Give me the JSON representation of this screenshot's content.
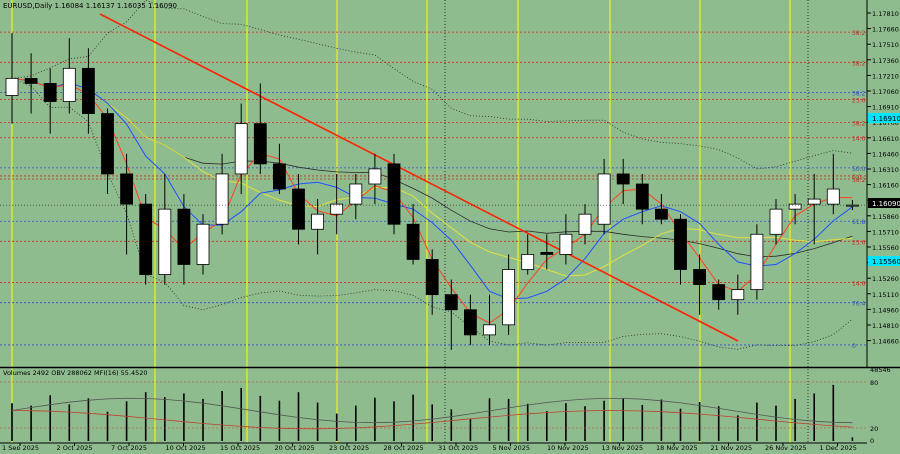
{
  "symbol_header": "EURUSD,Daily  1.16084  1.16137  1.16035  1.16090",
  "indicator_header": "Volumes 2492   OBV 288062   MFI(16) 55.4520",
  "colors": {
    "background": "#8fbc8f",
    "trendline": "#ff2200",
    "bollinger": "#2a2a2a",
    "ma_fast": "#ff4020",
    "ma_mid": "#2050ff",
    "ma_slow": "#e0e040",
    "candle_up": "#ffffff",
    "candle_down": "#000000",
    "marker_yellow": "#ffff00",
    "price_tag_black": "#000000",
    "price_tag_cyan": "#00e5ff"
  },
  "price_axis_labels": [
    "1.17810",
    "1.17660",
    "1.17510",
    "1.17360",
    "1.17210",
    "1.17060",
    "1.16910",
    "1.16760",
    "1.16610",
    "1.16460",
    "1.16310",
    "1.16160",
    "1.16010",
    "1.15860",
    "1.15710",
    "1.15560",
    "1.15410",
    "1.15260",
    "1.15110",
    "1.14960",
    "1.14810",
    "1.14660"
  ],
  "price_tags": {
    "current": "1.16090",
    "cyan_upper": "1.16910",
    "cyan_lower": "1.15560"
  },
  "fib_levels": [
    {
      "label": "38.2",
      "price": 1.1781,
      "color": "#c03020"
    },
    {
      "label": "38.2",
      "price": 1.1751,
      "color": "#c03020"
    },
    {
      "label": "38.2",
      "price": 1.1721,
      "color": "#3050c0"
    },
    {
      "label": "23.6",
      "price": 1.1714,
      "color": "#c03020"
    },
    {
      "label": "38.2",
      "price": 1.1691,
      "color": "#c03020"
    },
    {
      "label": "14.6",
      "price": 1.1676,
      "color": "#c03020"
    },
    {
      "label": "50.0",
      "price": 1.1646,
      "color": "#3050c0"
    },
    {
      "label": "0.0",
      "price": 1.1638,
      "color": "#c03020"
    },
    {
      "label": "38.2",
      "price": 1.1635,
      "color": "#c03020"
    },
    {
      "label": "61.8",
      "price": 1.1593,
      "color": "#3050c0"
    },
    {
      "label": "23.6",
      "price": 1.1573,
      "color": "#c03020"
    },
    {
      "label": "14.6",
      "price": 1.1532,
      "color": "#c03020"
    },
    {
      "label": "76.4",
      "price": 1.1512,
      "color": "#3050c0"
    },
    {
      "label": "0",
      "price": 1.147,
      "color": "#3050c0"
    }
  ],
  "date_labels": [
    "1 Sep 2025",
    "2 Oct 2025",
    "7 Oct 2025",
    "10 Oct 2025",
    "15 Oct 2025",
    "20 Oct 2025",
    "23 Oct 2025",
    "28 Oct 2025",
    "31 Oct 2025",
    "5 Nov 2025",
    "10 Nov 2025",
    "13 Nov 2025",
    "18 Nov 2025",
    "21 Nov 2025",
    "26 Nov 2025",
    "1 Dec 2025"
  ],
  "volume_axis_labels": [
    "48546",
    "80",
    "20",
    "0"
  ],
  "chart_data": {
    "type": "candlestick",
    "title": "EURUSD,Daily",
    "ylabel": "",
    "ylim": [
      1.146,
      1.18
    ],
    "ohlc": [
      [
        1.1718,
        1.178,
        1.169,
        1.1735
      ],
      [
        1.1735,
        1.176,
        1.17,
        1.173
      ],
      [
        1.173,
        1.1745,
        1.168,
        1.1712
      ],
      [
        1.1712,
        1.1775,
        1.17,
        1.1745
      ],
      [
        1.1745,
        1.1765,
        1.168,
        1.17
      ],
      [
        1.17,
        1.1705,
        1.162,
        1.164
      ],
      [
        1.164,
        1.166,
        1.156,
        1.161
      ],
      [
        1.161,
        1.162,
        1.153,
        1.154
      ],
      [
        1.154,
        1.164,
        1.153,
        1.1605
      ],
      [
        1.1605,
        1.162,
        1.153,
        1.155
      ],
      [
        1.155,
        1.16,
        1.154,
        1.159
      ],
      [
        1.159,
        1.166,
        1.158,
        1.164
      ],
      [
        1.164,
        1.171,
        1.162,
        1.169
      ],
      [
        1.169,
        1.173,
        1.164,
        1.165
      ],
      [
        1.165,
        1.167,
        1.162,
        1.1625
      ],
      [
        1.1625,
        1.164,
        1.157,
        1.1585
      ],
      [
        1.1585,
        1.1615,
        1.156,
        1.16
      ],
      [
        1.16,
        1.164,
        1.158,
        1.161
      ],
      [
        1.161,
        1.164,
        1.1595,
        1.163
      ],
      [
        1.163,
        1.166,
        1.161,
        1.1645
      ],
      [
        1.165,
        1.166,
        1.158,
        1.159
      ],
      [
        1.159,
        1.161,
        1.155,
        1.1555
      ],
      [
        1.1555,
        1.1565,
        1.15,
        1.152
      ],
      [
        1.152,
        1.1535,
        1.1465,
        1.1505
      ],
      [
        1.1505,
        1.152,
        1.147,
        1.148
      ],
      [
        1.148,
        1.152,
        1.147,
        1.149
      ],
      [
        1.149,
        1.156,
        1.148,
        1.1545
      ],
      [
        1.1545,
        1.158,
        1.154,
        1.156
      ],
      [
        1.1562,
        1.158,
        1.1545,
        1.156
      ],
      [
        1.156,
        1.16,
        1.155,
        1.158
      ],
      [
        1.158,
        1.161,
        1.157,
        1.16
      ],
      [
        1.159,
        1.1655,
        1.158,
        1.164
      ],
      [
        1.164,
        1.1655,
        1.161,
        1.163
      ],
      [
        1.163,
        1.164,
        1.159,
        1.1605
      ],
      [
        1.1605,
        1.162,
        1.159,
        1.1595
      ],
      [
        1.1595,
        1.16,
        1.153,
        1.1545
      ],
      [
        1.1545,
        1.156,
        1.15,
        1.153
      ],
      [
        1.153,
        1.1535,
        1.1505,
        1.1515
      ],
      [
        1.1515,
        1.154,
        1.15,
        1.1525
      ],
      [
        1.1525,
        1.159,
        1.1515,
        1.158
      ],
      [
        1.158,
        1.1615,
        1.157,
        1.1605
      ],
      [
        1.1605,
        1.162,
        1.159,
        1.161
      ],
      [
        1.161,
        1.164,
        1.157,
        1.1615
      ],
      [
        1.161,
        1.166,
        1.16,
        1.1625
      ],
      [
        1.1608,
        1.1614,
        1.1604,
        1.1609
      ]
    ],
    "volume": [
      62,
      58,
      75,
      60,
      70,
      48,
      65,
      80,
      72,
      78,
      69,
      82,
      87,
      74,
      66,
      80,
      63,
      45,
      58,
      71,
      65,
      76,
      60,
      52,
      36,
      70,
      69,
      61,
      49,
      62,
      57,
      66,
      70,
      59,
      68,
      53,
      64,
      57,
      42,
      63,
      58,
      69,
      78,
      92,
      6
    ],
    "legend": []
  }
}
